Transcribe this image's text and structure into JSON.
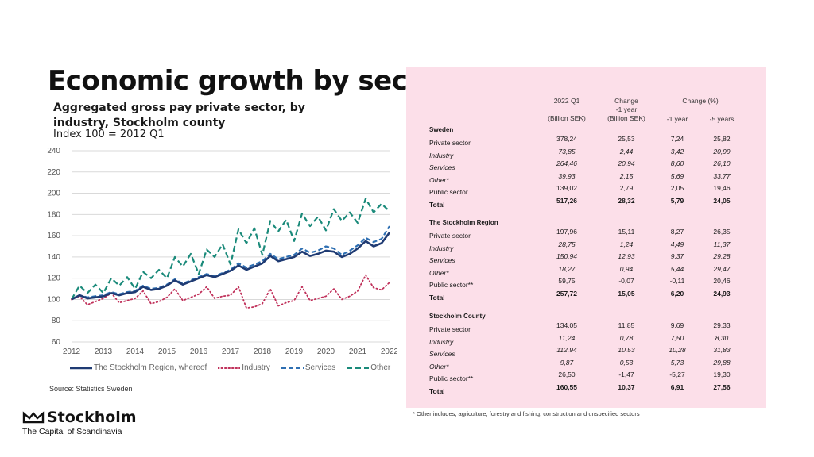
{
  "title": "Economic growth by sector",
  "subtitle": "Aggregated gross pay private sector, by industry, Stockholm county",
  "index_label": "Index 100 = 2012 Q1",
  "source": "Source: Statistics Sweden",
  "logo": {
    "name": "Stockholm",
    "tagline": "The Capital of Scandinavia"
  },
  "colors": {
    "region": "#1f3b73",
    "industry": "#c0305a",
    "services": "#2e6fb2",
    "other": "#1a8a7a",
    "panel": "#fcdfe9"
  },
  "chart_data": {
    "type": "line",
    "x": [
      2012,
      2012.25,
      2012.5,
      2012.75,
      2013,
      2013.25,
      2013.5,
      2013.75,
      2014,
      2014.25,
      2014.5,
      2014.75,
      2015,
      2015.25,
      2015.5,
      2015.75,
      2016,
      2016.25,
      2016.5,
      2016.75,
      2017,
      2017.25,
      2017.5,
      2017.75,
      2018,
      2018.25,
      2018.5,
      2018.75,
      2019,
      2019.25,
      2019.5,
      2019.75,
      2020,
      2020.25,
      2020.5,
      2020.75,
      2021,
      2021.25,
      2021.5,
      2021.75,
      2022
    ],
    "series": [
      {
        "name": "The Stockholm Region, whereof",
        "values": [
          100,
          104,
          101,
          102,
          103,
          106,
          104,
          106,
          107,
          112,
          109,
          110,
          113,
          118,
          114,
          117,
          120,
          123,
          121,
          124,
          127,
          132,
          128,
          131,
          134,
          141,
          136,
          138,
          140,
          145,
          141,
          143,
          146,
          145,
          140,
          143,
          148,
          155,
          150,
          153,
          163
        ]
      },
      {
        "name": "Industry",
        "values": [
          100,
          103,
          95,
          98,
          101,
          106,
          97,
          99,
          101,
          108,
          96,
          98,
          102,
          110,
          99,
          102,
          105,
          112,
          101,
          103,
          104,
          112,
          92,
          93,
          96,
          110,
          94,
          97,
          99,
          112,
          99,
          101,
          103,
          110,
          100,
          103,
          108,
          123,
          111,
          109,
          116
        ]
      },
      {
        "name": "Services",
        "values": [
          100,
          104,
          102,
          103,
          104,
          107,
          105,
          107,
          108,
          113,
          110,
          111,
          114,
          119,
          115,
          118,
          121,
          124,
          122,
          125,
          128,
          134,
          130,
          133,
          136,
          143,
          138,
          140,
          142,
          148,
          144,
          146,
          150,
          148,
          142,
          146,
          151,
          158,
          154,
          157,
          169
        ]
      },
      {
        "name": "Other",
        "values": [
          100,
          113,
          106,
          114,
          106,
          120,
          113,
          121,
          110,
          126,
          120,
          128,
          120,
          140,
          131,
          143,
          124,
          147,
          140,
          152,
          133,
          166,
          153,
          167,
          142,
          174,
          164,
          175,
          155,
          181,
          169,
          178,
          165,
          185,
          174,
          182,
          172,
          195,
          182,
          190,
          183
        ]
      }
    ],
    "title": "Economic growth by sector",
    "xlabel": "",
    "ylabel": "Index 100 = 2012 Q1",
    "xlim": [
      2012,
      2022
    ],
    "ylim": [
      60,
      240
    ],
    "xticks": [
      "2012",
      "2013",
      "2014",
      "2015",
      "2016",
      "2017",
      "2018",
      "2019",
      "2020",
      "2021",
      "2022"
    ],
    "yticks": [
      "60",
      "80",
      "100",
      "120",
      "140",
      "160",
      "180",
      "200",
      "220",
      "240"
    ],
    "grid": true,
    "legend": "bottom"
  },
  "table": {
    "col_2022q1": "2022 Q1",
    "col_2022q1_unit": "(Billion SEK)",
    "col_change": "Change",
    "col_change_sub": "-1 year",
    "col_change_unit": "(Billion SEK)",
    "col_change_pct": "Change (%)",
    "col_1y": "-1 year",
    "col_5y": "-5 years",
    "sections": [
      {
        "name": "Sweden",
        "rows": [
          {
            "label": "Private sector",
            "style": "normal",
            "v": [
              "378,24",
              "25,53",
              "7,24",
              "25,82"
            ]
          },
          {
            "label": "Industry",
            "style": "italic",
            "v": [
              "73,85",
              "2,44",
              "3,42",
              "20,99"
            ]
          },
          {
            "label": "Services",
            "style": "italic",
            "v": [
              "264,46",
              "20,94",
              "8,60",
              "26,10"
            ]
          },
          {
            "label": "Other*",
            "style": "italic",
            "v": [
              "39,93",
              "2,15",
              "5,69",
              "33,77"
            ]
          },
          {
            "label": "Public sector",
            "style": "normal",
            "v": [
              "139,02",
              "2,79",
              "2,05",
              "19,46"
            ]
          },
          {
            "label": "Total",
            "style": "bold",
            "v": [
              "517,26",
              "28,32",
              "5,79",
              "24,05"
            ]
          }
        ]
      },
      {
        "name": "The Stockholm Region",
        "rows": [
          {
            "label": "Private sector",
            "style": "normal",
            "v": [
              "197,96",
              "15,11",
              "8,27",
              "26,35"
            ]
          },
          {
            "label": "Industry",
            "style": "italic",
            "v": [
              "28,75",
              "1,24",
              "4,49",
              "11,37"
            ]
          },
          {
            "label": "Services",
            "style": "italic",
            "v": [
              "150,94",
              "12,93",
              "9,37",
              "29,28"
            ]
          },
          {
            "label": "Other*",
            "style": "italic",
            "v": [
              "18,27",
              "0,94",
              "5,44",
              "29,47"
            ]
          },
          {
            "label": "Public sector**",
            "style": "normal",
            "v": [
              "59,75",
              "-0,07",
              "-0,11",
              "20,46"
            ]
          },
          {
            "label": "Total",
            "style": "bold",
            "v": [
              "257,72",
              "15,05",
              "6,20",
              "24,93"
            ]
          }
        ]
      },
      {
        "name": "Stockholm County",
        "rows": [
          {
            "label": "Private sector",
            "style": "normal",
            "v": [
              "134,05",
              "11,85",
              "9,69",
              "29,33"
            ]
          },
          {
            "label": "Industry",
            "style": "italic",
            "v": [
              "11,24",
              "0,78",
              "7,50",
              "8,30"
            ]
          },
          {
            "label": "Services",
            "style": "italic",
            "v": [
              "112,94",
              "10,53",
              "10,28",
              "31,83"
            ]
          },
          {
            "label": "Other*",
            "style": "italic",
            "v": [
              "9,87",
              "0,53",
              "5,73",
              "29,88"
            ]
          },
          {
            "label": "Public sector**",
            "style": "normal",
            "v": [
              "26,50",
              "-1,47",
              "-5,27",
              "19,30"
            ]
          },
          {
            "label": "Total",
            "style": "bold",
            "v": [
              "160,55",
              "10,37",
              "6,91",
              "27,56"
            ]
          }
        ]
      }
    ]
  },
  "footnote": "* Other includes, agriculture, forestry and fishing, construction and unspecified sectors"
}
